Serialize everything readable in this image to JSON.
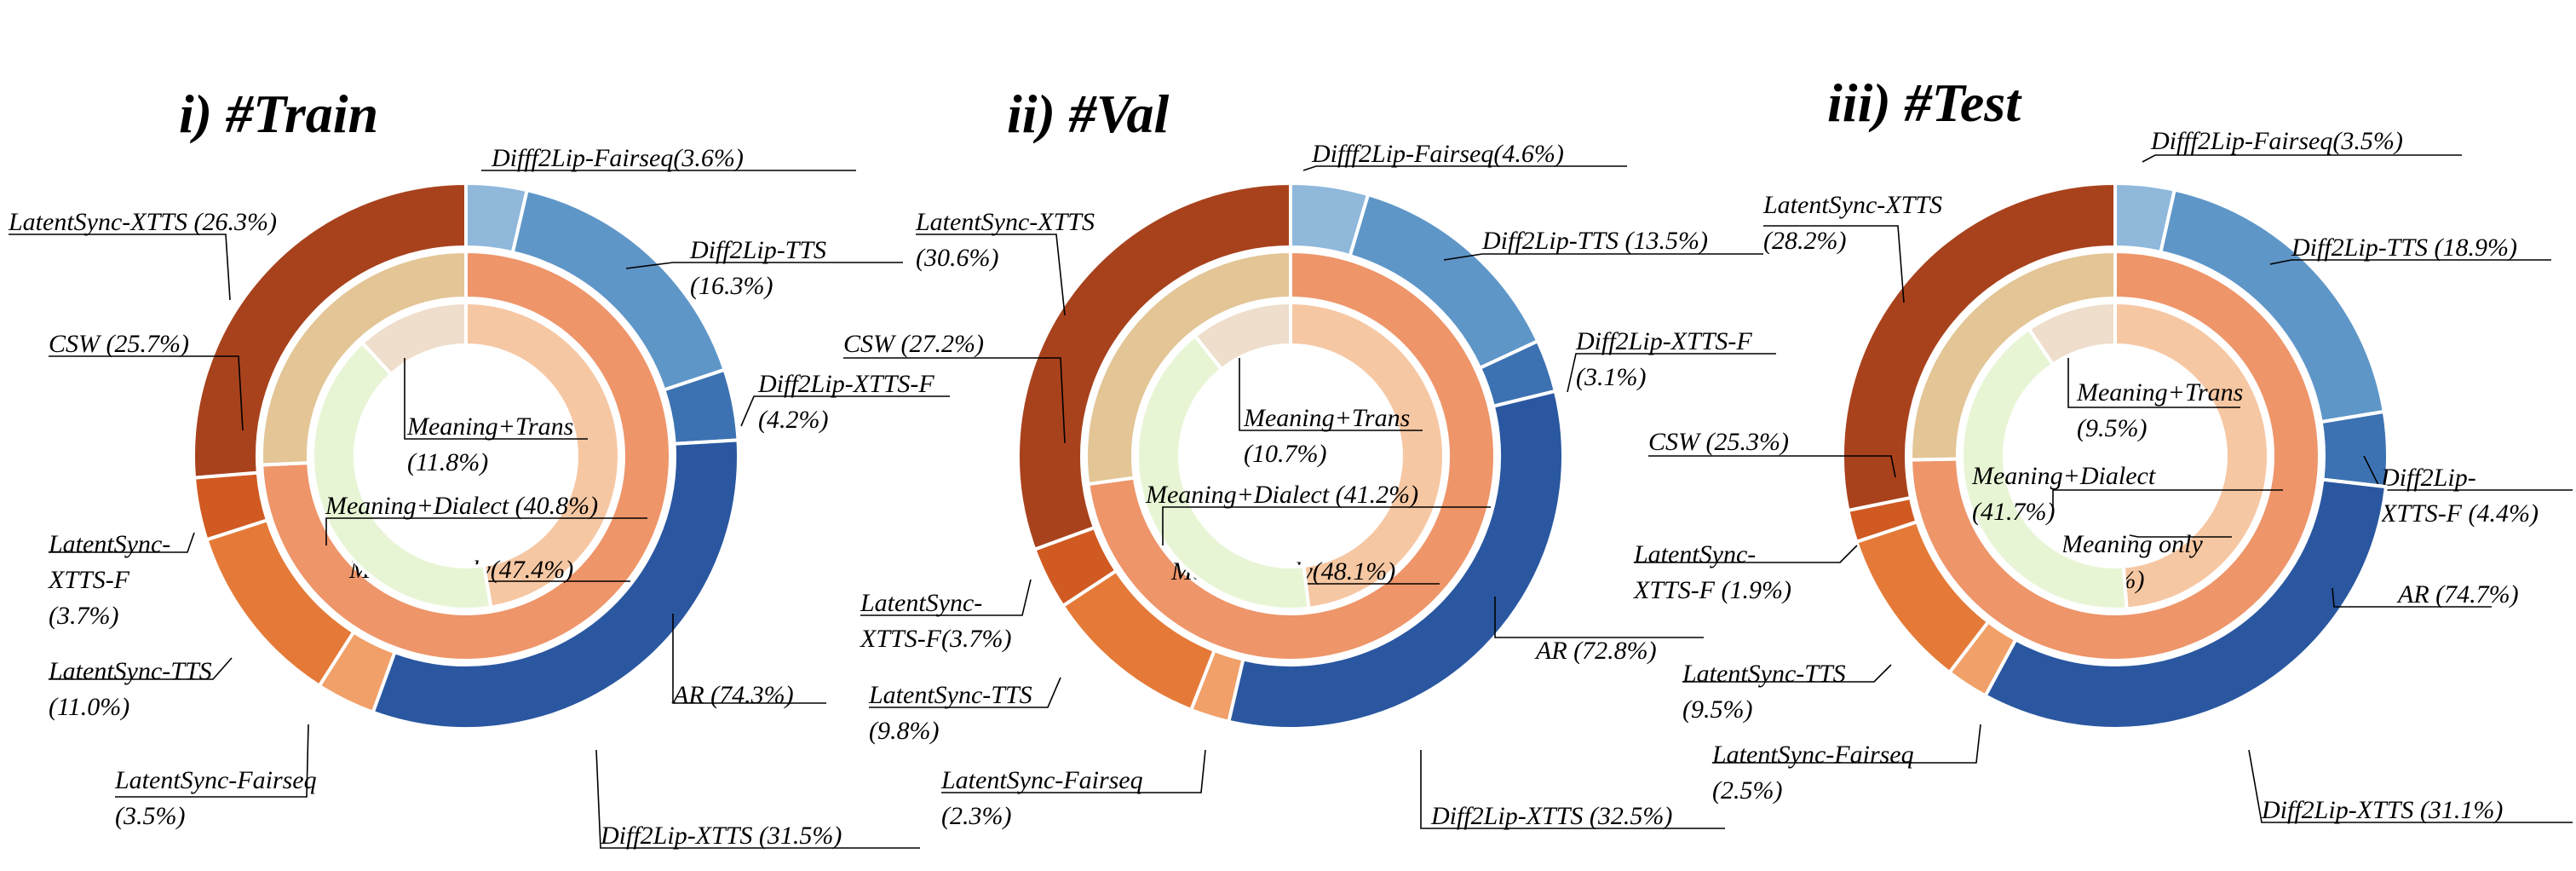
{
  "chart_data": [
    {
      "type": "pie",
      "title": "i) #Train",
      "rings": {
        "outer": [
          {
            "name": "Difff2Lip-Fairseq",
            "value": 3.6,
            "label_lines": [
              "Difff2Lip-Fairseq(3.6%)"
            ],
            "color": "#8fb8db"
          },
          {
            "name": "Diff2Lip-TTS",
            "value": 16.3,
            "label_lines": [
              "Diff2Lip-TTS",
              "(16.3%)"
            ],
            "color": "#5f96c8"
          },
          {
            "name": "Diff2Lip-XTTS-F",
            "value": 4.2,
            "label_lines": [
              "Diff2Lip-XTTS-F",
              "(4.2%)"
            ],
            "color": "#3d72b2"
          },
          {
            "name": "Diff2Lip-XTTS",
            "value": 31.5,
            "label_lines": [
              "Diff2Lip-XTTS (31.5%)"
            ],
            "color": "#2a57a0"
          },
          {
            "name": "LatentSync-Fairseq",
            "value": 3.5,
            "label_lines": [
              "LatentSync-Fairseq",
              "(3.5%)"
            ],
            "color": "#f0a068"
          },
          {
            "name": "LatentSync-TTS",
            "value": 11.0,
            "label_lines": [
              "LatentSync-TTS",
              "(11.0%)"
            ],
            "color": "#e57a38"
          },
          {
            "name": "LatentSync-XTTS-F",
            "value": 3.7,
            "label_lines": [
              "LatentSync-",
              "XTTS-F",
              "(3.7%)"
            ],
            "color": "#d05a22"
          },
          {
            "name": "LatentSync-XTTS",
            "value": 26.3,
            "label_lines": [
              "LatentSync-XTTS (26.3%)"
            ],
            "color": "#a8421d"
          }
        ],
        "middle": [
          {
            "name": "AR",
            "value": 74.3,
            "label_lines": [
              "AR (74.3%)"
            ],
            "color": "#ee956a"
          },
          {
            "name": "CSW",
            "value": 25.7,
            "label_lines": [
              "CSW (25.7%)"
            ],
            "color": "#e3c596"
          }
        ],
        "inner": [
          {
            "name": "Meaning only",
            "value": 47.4,
            "label_lines": [
              "Meaning only(47.4%)"
            ],
            "color": "#f6c7a3"
          },
          {
            "name": "Meaning+Dialect",
            "value": 40.8,
            "label_lines": [
              "Meaning+Dialect (40.8%)"
            ],
            "color": "#e8f5d5"
          },
          {
            "name": "Meaning+Trans",
            "value": 11.8,
            "label_lines": [
              "Meaning+Trans",
              "(11.8%)"
            ],
            "color": "#eedecb"
          }
        ]
      }
    },
    {
      "type": "pie",
      "title": "ii) #Val",
      "rings": {
        "outer": [
          {
            "name": "Difff2Lip-Fairseq",
            "value": 4.6,
            "label_lines": [
              "Difff2Lip-Fairseq(4.6%)"
            ],
            "color": "#8fb8db"
          },
          {
            "name": "Diff2Lip-TTS",
            "value": 13.5,
            "label_lines": [
              "Diff2Lip-TTS (13.5%)"
            ],
            "color": "#5f96c8"
          },
          {
            "name": "Diff2Lip-XTTS-F",
            "value": 3.1,
            "label_lines": [
              "Diff2Lip-XTTS-F",
              "(3.1%)"
            ],
            "color": "#3d72b2"
          },
          {
            "name": "Diff2Lip-XTTS",
            "value": 32.5,
            "label_lines": [
              "Diff2Lip-XTTS (32.5%)"
            ],
            "color": "#2a57a0"
          },
          {
            "name": "LatentSync-Fairseq",
            "value": 2.3,
            "label_lines": [
              "LatentSync-Fairseq",
              "(2.3%)"
            ],
            "color": "#f0a068"
          },
          {
            "name": "LatentSync-TTS",
            "value": 9.8,
            "label_lines": [
              "LatentSync-TTS",
              "(9.8%)"
            ],
            "color": "#e57a38"
          },
          {
            "name": "LatentSync-XTTS-F",
            "value": 3.7,
            "label_lines": [
              "LatentSync-",
              "XTTS-F(3.7%)"
            ],
            "color": "#d05a22"
          },
          {
            "name": "LatentSync-XTTS",
            "value": 30.6,
            "label_lines": [
              "LatentSync-XTTS",
              "(30.6%)"
            ],
            "color": "#a8421d"
          }
        ],
        "middle": [
          {
            "name": "AR",
            "value": 72.8,
            "label_lines": [
              "AR (72.8%)"
            ],
            "color": "#ee956a"
          },
          {
            "name": "CSW",
            "value": 27.2,
            "label_lines": [
              "CSW (27.2%)"
            ],
            "color": "#e3c596"
          }
        ],
        "inner": [
          {
            "name": "Meaning only",
            "value": 48.1,
            "label_lines": [
              "Meaning only(48.1%)"
            ],
            "color": "#f6c7a3"
          },
          {
            "name": "Meaning+Dialect",
            "value": 41.2,
            "label_lines": [
              "Meaning+Dialect (41.2%)"
            ],
            "color": "#e8f5d5"
          },
          {
            "name": "Meaning+Trans",
            "value": 10.7,
            "label_lines": [
              "Meaning+Trans",
              "(10.7%)"
            ],
            "color": "#eedecb"
          }
        ]
      }
    },
    {
      "type": "pie",
      "title": "iii) #Test",
      "rings": {
        "outer": [
          {
            "name": "Difff2Lip-Fairseq",
            "value": 3.5,
            "label_lines": [
              "Difff2Lip-Fairseq(3.5%)"
            ],
            "color": "#8fb8db"
          },
          {
            "name": "Diff2Lip-TTS",
            "value": 18.9,
            "label_lines": [
              "Diff2Lip-TTS (18.9%)"
            ],
            "color": "#5f96c8"
          },
          {
            "name": "Diff2Lip-XTTS-F",
            "value": 4.4,
            "label_lines": [
              "Diff2Lip-",
              "XTTS-F (4.4%)"
            ],
            "color": "#3d72b2"
          },
          {
            "name": "Diff2Lip-XTTS",
            "value": 31.1,
            "label_lines": [
              "Diff2Lip-XTTS (31.1%)"
            ],
            "color": "#2a57a0"
          },
          {
            "name": "LatentSync-Fairseq",
            "value": 2.5,
            "label_lines": [
              "LatentSync-Fairseq",
              "(2.5%)"
            ],
            "color": "#f0a068"
          },
          {
            "name": "LatentSync-TTS",
            "value": 9.5,
            "label_lines": [
              "LatentSync-TTS",
              "(9.5%)"
            ],
            "color": "#e57a38"
          },
          {
            "name": "LatentSync-XTTS-F",
            "value": 1.9,
            "label_lines": [
              "LatentSync-",
              "XTTS-F (1.9%)"
            ],
            "color": "#d05a22"
          },
          {
            "name": "LatentSync-XTTS",
            "value": 28.2,
            "label_lines": [
              "LatentSync-XTTS",
              "(28.2%)"
            ],
            "color": "#a8421d"
          }
        ],
        "middle": [
          {
            "name": "AR",
            "value": 74.7,
            "label_lines": [
              "AR (74.7%)"
            ],
            "color": "#ee956a"
          },
          {
            "name": "CSW",
            "value": 25.3,
            "label_lines": [
              "CSW (25.3%)"
            ],
            "color": "#e3c596"
          }
        ],
        "inner": [
          {
            "name": "Meaning only",
            "value": 48.8,
            "label_lines": [
              "Meaning only",
              "(48.8%)"
            ],
            "color": "#f6c7a3"
          },
          {
            "name": "Meaning+Dialect",
            "value": 41.7,
            "label_lines": [
              "Meaning+Dialect",
              "(41.7%)"
            ],
            "color": "#e8f5d5"
          },
          {
            "name": "Meaning+Trans",
            "value": 9.5,
            "label_lines": [
              "Meaning+Trans",
              "(9.5%)"
            ],
            "color": "#eedecb"
          }
        ]
      }
    }
  ]
}
